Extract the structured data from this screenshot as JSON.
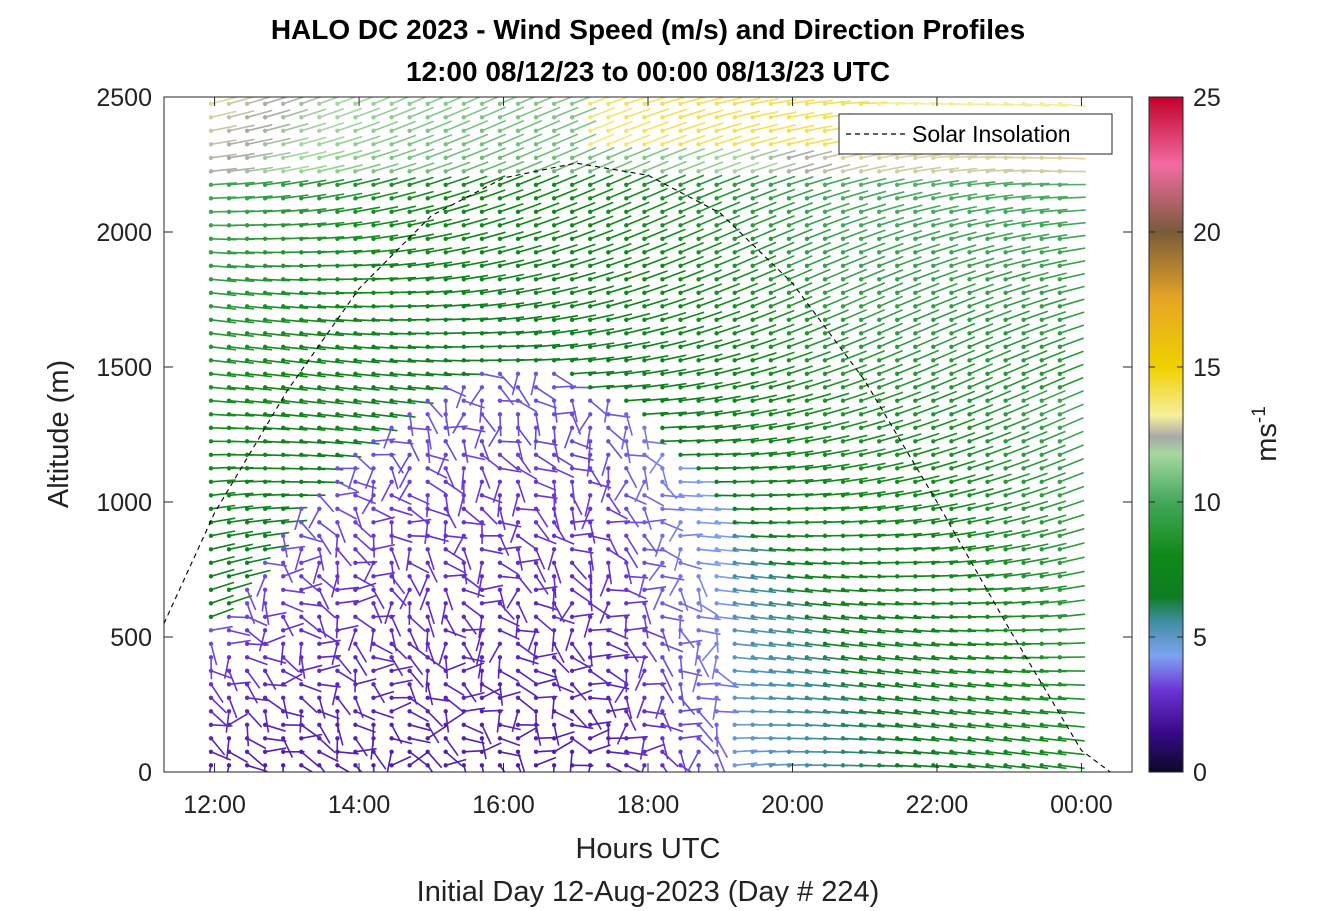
{
  "chart_data": {
    "type": "wind-barb-profile",
    "title_line1": "HALO DC 2023 - Wind Speed (m/s) and Direction Profiles",
    "title_line2": "12:00 08/12/23 to 00:00 08/13/23  UTC",
    "xlabel": "Hours UTC",
    "subtitle": "Initial Day 12-Aug-2023 (Day # 224)",
    "ylabel": "Altitude (m)",
    "x_tick_labels": [
      "12:00",
      "14:00",
      "16:00",
      "18:00",
      "20:00",
      "22:00",
      "00:00"
    ],
    "x_tick_hours": [
      12,
      14,
      16,
      18,
      20,
      22,
      24
    ],
    "xlim_hours": [
      11.3,
      24.7
    ],
    "y_ticks": [
      0,
      500,
      1000,
      1500,
      2000,
      2500
    ],
    "y_tick_labels": [
      "0",
      "500",
      "1000",
      "1500",
      "2000",
      "2500"
    ],
    "ylim": [
      0,
      2500
    ],
    "profile_start_hour": 11.95,
    "profile_step_hours": 0.25,
    "profile_count": 48,
    "level_step_m": 50,
    "level_count": 50,
    "colorbar": {
      "label": "ms",
      "label_superscript": "-1",
      "range": [
        0,
        25
      ],
      "ticks": [
        0,
        5,
        10,
        15,
        20,
        25
      ],
      "tick_labels": [
        "0",
        "5",
        "10",
        "15",
        "20",
        "25"
      ],
      "stops": [
        {
          "v": 0,
          "c": "#0a0a28"
        },
        {
          "v": 1.5,
          "c": "#3a0a8a"
        },
        {
          "v": 3,
          "c": "#6a33d4"
        },
        {
          "v": 4.3,
          "c": "#7da3f2"
        },
        {
          "v": 5.6,
          "c": "#3f8da0"
        },
        {
          "v": 6.5,
          "c": "#0e7d22"
        },
        {
          "v": 8,
          "c": "#0f8a18"
        },
        {
          "v": 10,
          "c": "#43a85a"
        },
        {
          "v": 11.8,
          "c": "#a6d9a0"
        },
        {
          "v": 12.4,
          "c": "#a8a8a8"
        },
        {
          "v": 13.2,
          "c": "#f6ee9c"
        },
        {
          "v": 15,
          "c": "#f0d000"
        },
        {
          "v": 17.5,
          "c": "#e6a524"
        },
        {
          "v": 20,
          "c": "#7a5b3a"
        },
        {
          "v": 22.5,
          "c": "#f26aa2"
        },
        {
          "v": 25,
          "c": "#c4002a"
        }
      ]
    },
    "legend": {
      "label": "Solar Insolation",
      "placement": "top-right",
      "line_style": "dashed",
      "line_color": "#000000"
    },
    "solar_insolation_curve": [
      {
        "hour": 11.3,
        "alt": 550
      },
      {
        "hour": 12.0,
        "alt": 960
      },
      {
        "hour": 13.0,
        "alt": 1410
      },
      {
        "hour": 14.0,
        "alt": 1790
      },
      {
        "hour": 15.0,
        "alt": 2060
      },
      {
        "hour": 16.0,
        "alt": 2200
      },
      {
        "hour": 17.0,
        "alt": 2255
      },
      {
        "hour": 18.0,
        "alt": 2210
      },
      {
        "hour": 19.0,
        "alt": 2070
      },
      {
        "hour": 20.0,
        "alt": 1810
      },
      {
        "hour": 21.0,
        "alt": 1450
      },
      {
        "hour": 22.0,
        "alt": 1000
      },
      {
        "hour": 23.0,
        "alt": 530
      },
      {
        "hour": 24.0,
        "alt": 80
      },
      {
        "hour": 24.4,
        "alt": 0
      },
      {
        "hour": 24.7,
        "alt": 0
      }
    ]
  }
}
